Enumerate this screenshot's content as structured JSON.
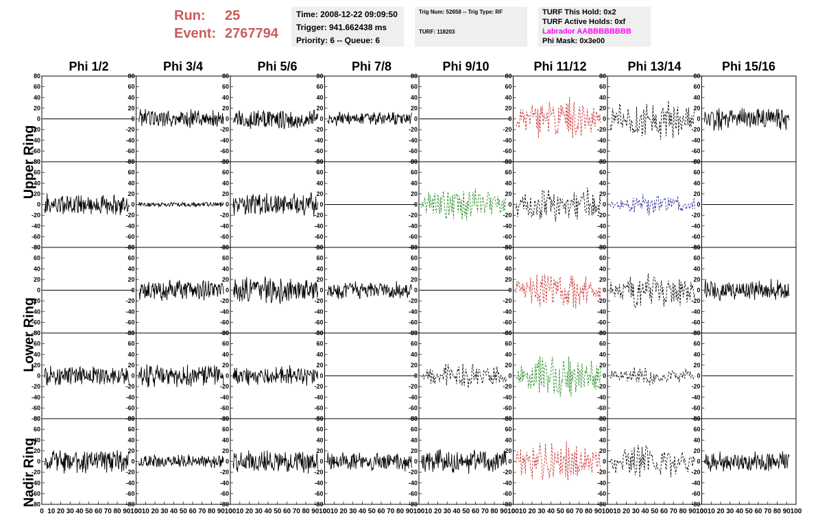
{
  "header": {
    "run_label": "Run:",
    "run_value": "25",
    "event_label": "Event:",
    "event_value": "2767794",
    "time": "Time: 2008-12-22 09:09:50",
    "trigger": "Trigger: 941.662438 ms",
    "priority": "Priority: 6 -- Queue: 6",
    "trig_num": "Trig Num: 52658 -- Trig Type: RF",
    "turf": "TURF: 118203",
    "turf_this_hold": "TURF This Hold: 0x2",
    "turf_active_holds": "TURF Active Holds: 0xf",
    "labrador": "Labrador AABBBBBBBB",
    "phi_mask": "Phi Mask: 0x3e00",
    "labrador_color": "#ff00ff",
    "run_color": "#cc5a5a"
  },
  "columns": [
    "Phi 1/2",
    "Phi 3/4",
    "Phi 5/6",
    "Phi 7/8",
    "Phi 9/10",
    "Phi 11/12",
    "Phi 13/14",
    "Phi 15/16"
  ],
  "row_labels": [
    "Upper Ring",
    "Lower Ring",
    "Nadir Ring"
  ],
  "chart_data": {
    "type": "line",
    "ylim": [
      -80,
      80
    ],
    "xlim": [
      0,
      100
    ],
    "yticks": [
      -80,
      -60,
      -40,
      -20,
      0,
      20,
      40,
      60,
      80
    ],
    "xticks": [
      0,
      10,
      20,
      30,
      40,
      50,
      60,
      70,
      80,
      90,
      100
    ],
    "xtick_labels_text": [
      "0",
      "10",
      "20",
      "30",
      "40",
      "50",
      "60",
      "70",
      "80",
      "90",
      "100"
    ],
    "colors": {
      "black": "#000000",
      "red": "#c83232",
      "green": "#228b22",
      "blue": "#2a2a9a"
    },
    "panels": [
      {
        "row": 0,
        "col": 0,
        "amp": 0,
        "style": "flat",
        "color": "black"
      },
      {
        "row": 0,
        "col": 1,
        "amp": 20,
        "style": "solid",
        "color": "black"
      },
      {
        "row": 0,
        "col": 2,
        "amp": 22,
        "style": "solid",
        "color": "black"
      },
      {
        "row": 0,
        "col": 3,
        "amp": 14,
        "style": "solid",
        "color": "black"
      },
      {
        "row": 0,
        "col": 4,
        "amp": 0,
        "style": "flat",
        "color": "black"
      },
      {
        "row": 0,
        "col": 5,
        "amp": 45,
        "style": "dashed",
        "color": "red"
      },
      {
        "row": 0,
        "col": 6,
        "amp": 45,
        "style": "dashed",
        "color": "black"
      },
      {
        "row": 0,
        "col": 7,
        "amp": 24,
        "style": "solid",
        "color": "black"
      },
      {
        "row": 1,
        "col": 0,
        "amp": 22,
        "style": "solid",
        "color": "black"
      },
      {
        "row": 1,
        "col": 1,
        "amp": 5,
        "style": "solid",
        "color": "black"
      },
      {
        "row": 1,
        "col": 2,
        "amp": 24,
        "style": "solid",
        "color": "black"
      },
      {
        "row": 1,
        "col": 3,
        "amp": 0,
        "style": "flat",
        "color": "black"
      },
      {
        "row": 1,
        "col": 4,
        "amp": 38,
        "style": "dashed",
        "color": "green"
      },
      {
        "row": 1,
        "col": 5,
        "amp": 42,
        "style": "dashed",
        "color": "black"
      },
      {
        "row": 1,
        "col": 6,
        "amp": 22,
        "style": "dashed",
        "color": "blue"
      },
      {
        "row": 1,
        "col": 7,
        "amp": 0,
        "style": "flat",
        "color": "black"
      },
      {
        "row": 2,
        "col": 0,
        "amp": 0,
        "style": "flat",
        "color": "black"
      },
      {
        "row": 2,
        "col": 1,
        "amp": 22,
        "style": "solid",
        "color": "black"
      },
      {
        "row": 2,
        "col": 2,
        "amp": 26,
        "style": "solid",
        "color": "black"
      },
      {
        "row": 2,
        "col": 3,
        "amp": 18,
        "style": "solid",
        "color": "black"
      },
      {
        "row": 2,
        "col": 4,
        "amp": 0,
        "style": "flat",
        "color": "black"
      },
      {
        "row": 2,
        "col": 5,
        "amp": 42,
        "style": "dashed",
        "color": "red"
      },
      {
        "row": 2,
        "col": 6,
        "amp": 40,
        "style": "dashed",
        "color": "black"
      },
      {
        "row": 2,
        "col": 7,
        "amp": 22,
        "style": "solid",
        "color": "black"
      },
      {
        "row": 3,
        "col": 0,
        "amp": 20,
        "style": "solid",
        "color": "black"
      },
      {
        "row": 3,
        "col": 1,
        "amp": 24,
        "style": "solid",
        "color": "black"
      },
      {
        "row": 3,
        "col": 2,
        "amp": 20,
        "style": "solid",
        "color": "black"
      },
      {
        "row": 3,
        "col": 3,
        "amp": 0,
        "style": "flat",
        "color": "black"
      },
      {
        "row": 3,
        "col": 4,
        "amp": 28,
        "style": "dashed",
        "color": "black"
      },
      {
        "row": 3,
        "col": 5,
        "amp": 45,
        "style": "dashed",
        "color": "green"
      },
      {
        "row": 3,
        "col": 6,
        "amp": 20,
        "style": "dashed",
        "color": "black"
      },
      {
        "row": 3,
        "col": 7,
        "amp": 0,
        "style": "flat",
        "color": "black"
      },
      {
        "row": 4,
        "col": 0,
        "amp": 24,
        "style": "solid",
        "color": "black"
      },
      {
        "row": 4,
        "col": 1,
        "amp": 14,
        "style": "solid",
        "color": "black"
      },
      {
        "row": 4,
        "col": 2,
        "amp": 24,
        "style": "solid",
        "color": "black"
      },
      {
        "row": 4,
        "col": 3,
        "amp": 20,
        "style": "solid",
        "color": "black"
      },
      {
        "row": 4,
        "col": 4,
        "amp": 24,
        "style": "solid",
        "color": "black"
      },
      {
        "row": 4,
        "col": 5,
        "amp": 45,
        "style": "dashed",
        "color": "red"
      },
      {
        "row": 4,
        "col": 6,
        "amp": 35,
        "style": "dashed",
        "color": "black"
      },
      {
        "row": 4,
        "col": 7,
        "amp": 22,
        "style": "solid",
        "color": "black"
      }
    ]
  }
}
